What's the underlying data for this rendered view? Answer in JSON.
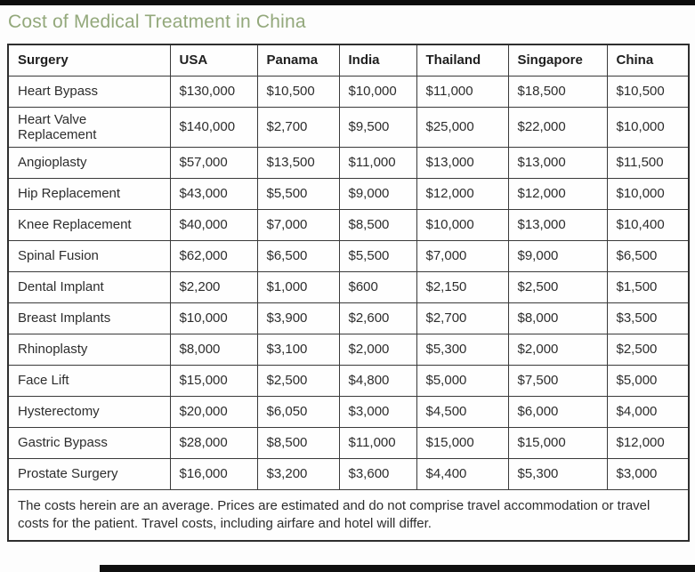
{
  "title": "Cost of Medical Treatment in China",
  "chart_data": {
    "type": "table",
    "columns": [
      "Surgery",
      "USA",
      "Panama",
      "India",
      "Thailand",
      "Singapore",
      "China"
    ],
    "rows": [
      [
        "Heart Bypass",
        "$130,000",
        "$10,500",
        "$10,000",
        "$11,000",
        "$18,500",
        "$10,500"
      ],
      [
        "Heart Valve Replacement",
        "$140,000",
        "$2,700",
        "$9,500",
        "$25,000",
        "$22,000",
        "$10,000"
      ],
      [
        "Angioplasty",
        "$57,000",
        "$13,500",
        "$11,000",
        "$13,000",
        "$13,000",
        "$11,500"
      ],
      [
        "Hip Replacement",
        "$43,000",
        "$5,500",
        "$9,000",
        "$12,000",
        "$12,000",
        "$10,000"
      ],
      [
        "Knee Replacement",
        "$40,000",
        "$7,000",
        "$8,500",
        "$10,000",
        "$13,000",
        "$10,400"
      ],
      [
        "Spinal Fusion",
        "$62,000",
        "$6,500",
        "$5,500",
        "$7,000",
        "$9,000",
        "$6,500"
      ],
      [
        "Dental Implant",
        "$2,200",
        "$1,000",
        "$600",
        "$2,150",
        "$2,500",
        "$1,500"
      ],
      [
        "Breast Implants",
        "$10,000",
        "$3,900",
        "$2,600",
        "$2,700",
        "$8,000",
        "$3,500"
      ],
      [
        "Rhinoplasty",
        "$8,000",
        "$3,100",
        "$2,000",
        "$5,300",
        "$2,000",
        "$2,500"
      ],
      [
        "Face Lift",
        "$15,000",
        "$2,500",
        "$4,800",
        "$5,000",
        "$7,500",
        "$5,000"
      ],
      [
        "Hysterectomy",
        "$20,000",
        "$6,050",
        "$3,000",
        "$4,500",
        "$6,000",
        "$4,000"
      ],
      [
        "Gastric Bypass",
        "$28,000",
        "$8,500",
        "$11,000",
        "$15,000",
        "$15,000",
        "$12,000"
      ],
      [
        "Prostate Surgery",
        "$16,000",
        "$3,200",
        "$3,600",
        "$4,400",
        "$5,300",
        "$3,000"
      ]
    ],
    "footnote": "The costs herein are an average. Prices are estimated and do not comprise travel accommodation or travel costs for the patient. Travel costs, including airfare and hotel will differ.",
    "title": "Cost of Medical Treatment in China",
    "layout": {
      "grid": true,
      "legend_position": "none"
    }
  },
  "colors": {
    "title_text": "#93a87b",
    "table_border": "#2e2e2e",
    "cell_text": "#2d2d2d",
    "background": "#fdfdfd",
    "top_bar": "#0d0d0d",
    "bottom_bar": "#101010"
  }
}
